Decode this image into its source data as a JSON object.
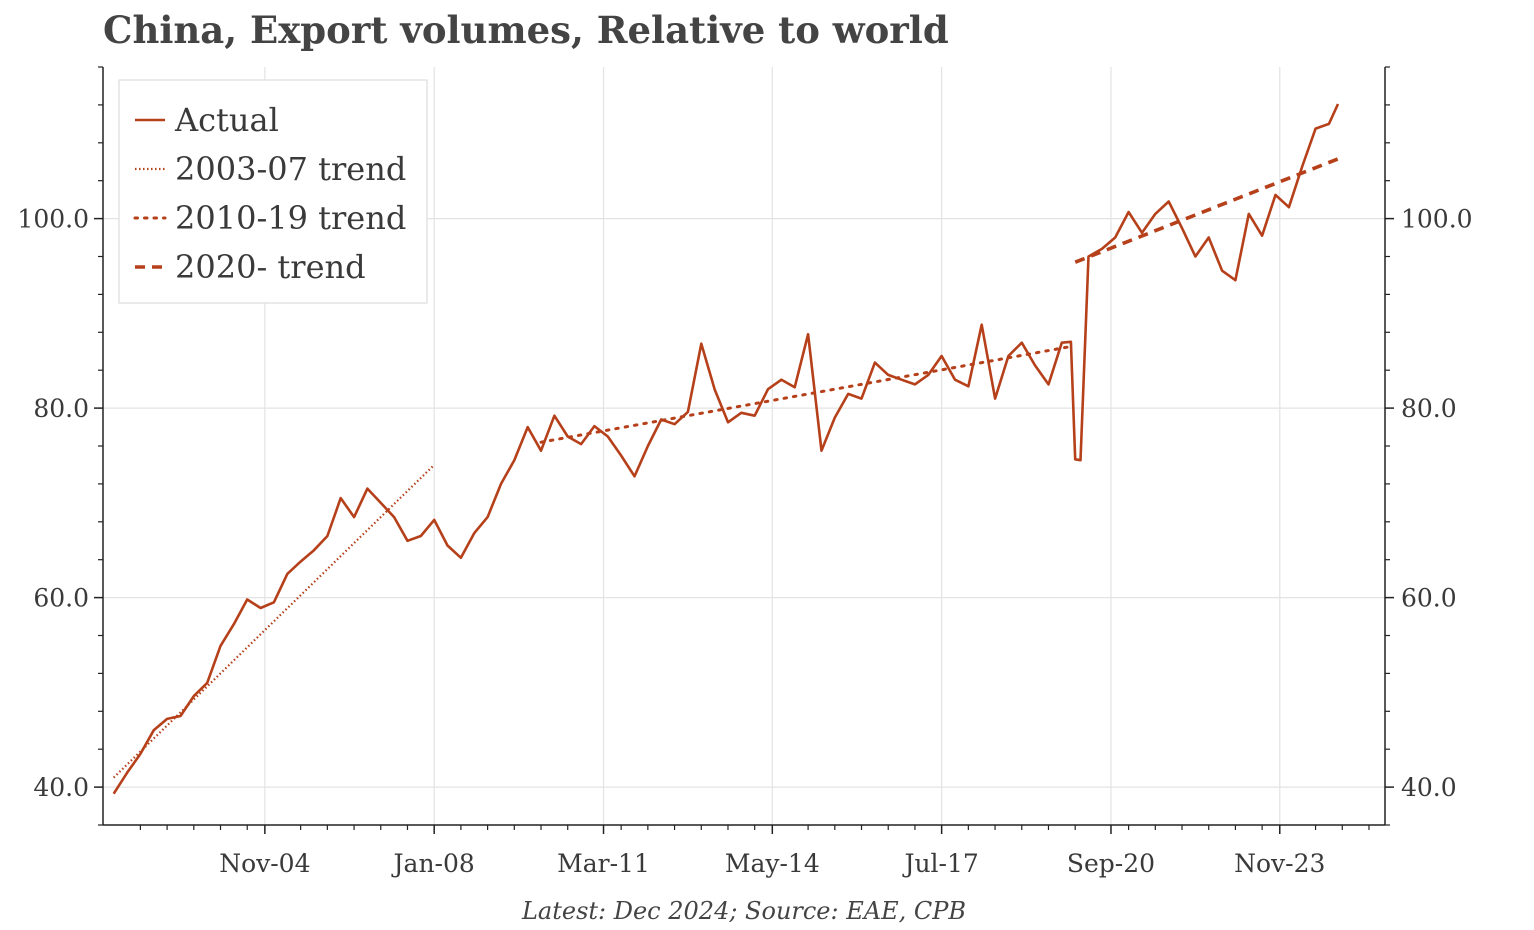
{
  "chart_data": {
    "type": "line",
    "title": "China, Export volumes, Relative to world",
    "source": "Latest: Dec 2024; Source: EAE, CPB",
    "xlabel": "",
    "ylabel": "",
    "x_ticks": [
      "Nov-04",
      "Jan-08",
      "Mar-11",
      "May-14",
      "Jul-17",
      "Sep-20",
      "Nov-23"
    ],
    "x_tick_values": [
      2004.83,
      2008.0,
      2011.17,
      2014.33,
      2017.5,
      2020.67,
      2023.83
    ],
    "xlim": [
      2001.8,
      2025.8
    ],
    "y_ticks": [
      "40.0",
      "60.0",
      "80.0",
      "100.0"
    ],
    "y_tick_values": [
      40,
      60,
      80,
      100
    ],
    "ylim": [
      36,
      116
    ],
    "grid": true,
    "legend_position": "top-left",
    "colors": {
      "series": "#b5401a",
      "grid": "#e3e3e3",
      "axis": "#222222"
    },
    "series": [
      {
        "name": "Actual",
        "style": "solid",
        "x": [
          2002.0,
          2002.25,
          2002.5,
          2002.75,
          2003.0,
          2003.25,
          2003.5,
          2003.75,
          2004.0,
          2004.25,
          2004.5,
          2004.75,
          2005.0,
          2005.25,
          2005.5,
          2005.75,
          2006.0,
          2006.25,
          2006.5,
          2006.75,
          2007.0,
          2007.25,
          2007.5,
          2007.75,
          2008.0,
          2008.25,
          2008.5,
          2008.75,
          2009.0,
          2009.25,
          2009.5,
          2009.75,
          2010.0,
          2010.25,
          2010.5,
          2010.75,
          2011.0,
          2011.25,
          2011.5,
          2011.75,
          2012.0,
          2012.25,
          2012.5,
          2012.75,
          2013.0,
          2013.25,
          2013.5,
          2013.75,
          2014.0,
          2014.25,
          2014.5,
          2014.75,
          2015.0,
          2015.25,
          2015.5,
          2015.75,
          2016.0,
          2016.25,
          2016.5,
          2016.75,
          2017.0,
          2017.25,
          2017.5,
          2017.75,
          2018.0,
          2018.25,
          2018.5,
          2018.75,
          2019.0,
          2019.25,
          2019.5,
          2019.75,
          2019.92,
          2020.0,
          2020.1,
          2020.25,
          2020.5,
          2020.75,
          2021.0,
          2021.25,
          2021.5,
          2021.75,
          2022.0,
          2022.25,
          2022.5,
          2022.75,
          2023.0,
          2023.25,
          2023.5,
          2023.75,
          2024.0,
          2024.25,
          2024.5,
          2024.75,
          2024.92
        ],
        "values": [
          39.3,
          41.5,
          43.5,
          46.0,
          47.2,
          47.5,
          49.6,
          51.0,
          54.9,
          57.2,
          59.8,
          58.9,
          59.5,
          62.5,
          63.8,
          65.0,
          66.5,
          70.5,
          68.5,
          71.5,
          70.0,
          68.5,
          66.0,
          66.5,
          68.2,
          65.5,
          64.2,
          66.8,
          68.5,
          72.0,
          74.5,
          78.0,
          75.5,
          79.2,
          77.0,
          76.2,
          78.1,
          77.0,
          75.0,
          72.8,
          76.0,
          78.8,
          78.3,
          79.6,
          86.8,
          82.0,
          78.5,
          79.5,
          79.2,
          82.0,
          83.0,
          82.2,
          87.8,
          75.5,
          79.0,
          81.5,
          81.0,
          84.8,
          83.5,
          83.0,
          82.5,
          83.5,
          85.5,
          83.0,
          82.3,
          88.8,
          81.0,
          85.5,
          86.9,
          84.5,
          82.5,
          86.9,
          87.0,
          74.6,
          74.5,
          96.0,
          96.8,
          98.0,
          100.7,
          98.5,
          100.5,
          101.8,
          99.0,
          96.0,
          98.0,
          94.5,
          93.5,
          100.5,
          98.2,
          102.5,
          101.2,
          105.5,
          109.5,
          110.0,
          112.1
        ]
      },
      {
        "name": "2003-07 trend",
        "style": "dotted-fine",
        "x": [
          2002.0,
          2008.0
        ],
        "values": [
          41.0,
          74.0
        ]
      },
      {
        "name": "2010-19 trend",
        "style": "dotted",
        "x": [
          2010.0,
          2019.92
        ],
        "values": [
          76.4,
          86.5
        ]
      },
      {
        "name": "2020- trend",
        "style": "dashed",
        "x": [
          2020.0,
          2024.92
        ],
        "values": [
          95.4,
          106.3
        ]
      }
    ]
  }
}
